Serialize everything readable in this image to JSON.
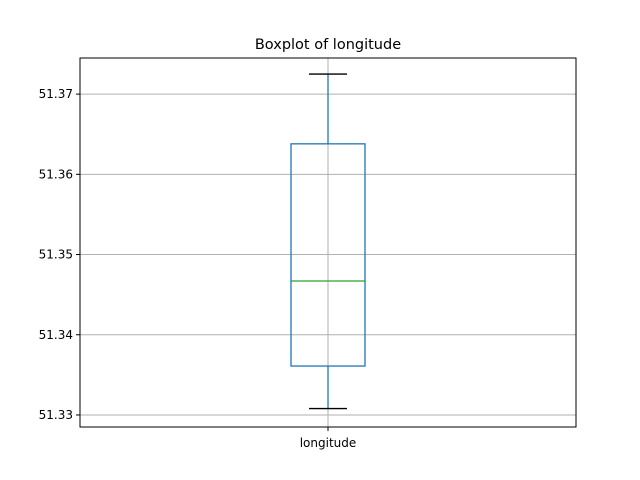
{
  "chart_data": {
    "type": "boxplot",
    "title": "Boxplot of longitude",
    "xlabel": "",
    "ylabel": "",
    "categories": [
      "longitude"
    ],
    "boxes": [
      {
        "label": "longitude",
        "whisker_low": 51.3308,
        "q1": 51.3361,
        "median": 51.3467,
        "q3": 51.3638,
        "whisker_high": 51.3725
      }
    ],
    "ylim": [
      51.3285,
      51.3745
    ],
    "yticks": [
      51.33,
      51.34,
      51.35,
      51.36,
      51.37
    ],
    "ytick_labels": [
      "51.33",
      "51.34",
      "51.35",
      "51.36",
      "51.37"
    ],
    "grid": true,
    "colors": {
      "box": "#1f77b4",
      "median": "#2ca02c",
      "grid": "#b0b0b0",
      "frame": "#000000"
    }
  }
}
